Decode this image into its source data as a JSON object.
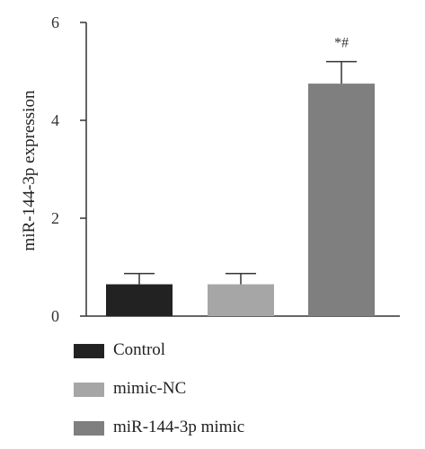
{
  "chart_data": {
    "type": "bar",
    "categories": [
      "Control",
      "mimic-NC",
      "miR-144-3p mimic"
    ],
    "values": [
      0.65,
      0.65,
      4.75
    ],
    "errors": [
      0.22,
      0.22,
      0.45
    ],
    "colors": [
      "#222222",
      "#a6a6a6",
      "#7f7f7f"
    ],
    "ylabel": "miR-144-3p expression",
    "xlabel": "",
    "ylim": [
      0,
      6
    ],
    "yticks": [
      0,
      2,
      4,
      6
    ],
    "annotations": [
      {
        "category": "miR-144-3p mimic",
        "text": "*#"
      }
    ],
    "legend": {
      "position": "bottom",
      "entries": [
        "Control",
        "mimic-NC",
        "miR-144-3p mimic"
      ]
    },
    "grid": false
  }
}
